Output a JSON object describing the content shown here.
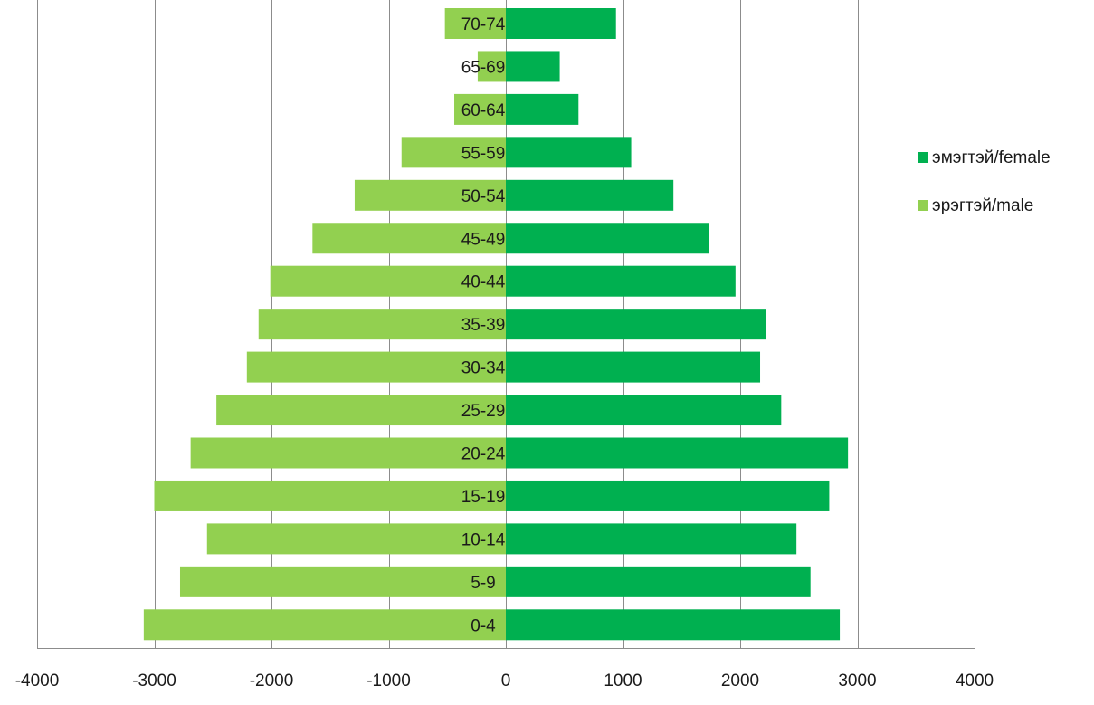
{
  "chart_data": {
    "type": "bar",
    "orientation": "horizontal",
    "categories": [
      "0-4",
      "5-9",
      "10-14",
      "15-19",
      "20-24",
      "25-29",
      "30-34",
      "35-39",
      "40-44",
      "45-49",
      "50-54",
      "55-59",
      "60-64",
      "65-69",
      "70-74"
    ],
    "series": [
      {
        "name": "эмэгтэй/female",
        "color": "#00b050",
        "values": [
          2850,
          2600,
          2480,
          2760,
          2920,
          2350,
          2170,
          2220,
          1960,
          1730,
          1430,
          1070,
          620,
          460,
          940
        ]
      },
      {
        "name": "эрэгтэй/male",
        "color": "#92d050",
        "values": [
          -3090,
          -2780,
          -2550,
          -3000,
          -2690,
          -2470,
          -2210,
          -2110,
          -2010,
          -1650,
          -1290,
          -890,
          -440,
          -240,
          -520
        ]
      }
    ],
    "xlim": [
      -4000,
      4000
    ],
    "xticks": [
      -4000,
      -3000,
      -2000,
      -1000,
      0,
      1000,
      2000,
      3000,
      4000
    ],
    "xtick_labels": [
      "-4000",
      "-3000",
      "-2000",
      "-1000",
      "0",
      "1000",
      "2000",
      "3000",
      "4000"
    ],
    "grid": true,
    "legend_position": "right"
  }
}
